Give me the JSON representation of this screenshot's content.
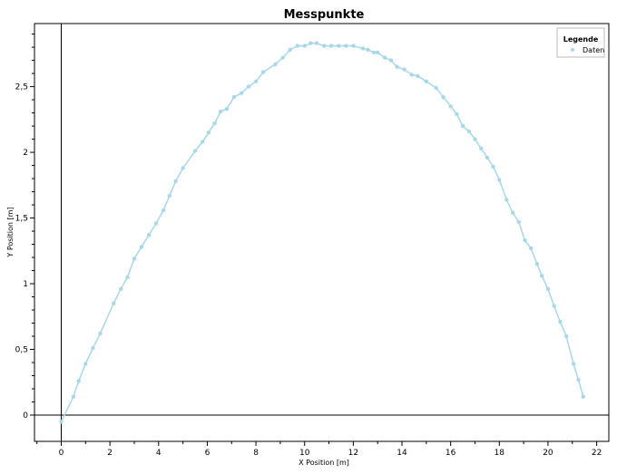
{
  "chart_data": {
    "type": "line",
    "title": "Messpunkte",
    "xlabel": "X Position [m]",
    "ylabel": "Y Position [m]",
    "xlim": [
      -1.1,
      22.5
    ],
    "ylim": [
      -0.2,
      2.98
    ],
    "x_ticks": [
      0,
      2,
      4,
      6,
      8,
      10,
      12,
      14,
      16,
      18,
      20,
      22
    ],
    "x_tick_labels": [
      "0",
      "2",
      "4",
      "6",
      "8",
      "10",
      "12",
      "14",
      "16",
      "18",
      "20",
      "22"
    ],
    "y_ticks": [
      0,
      0.5,
      1,
      1.5,
      2,
      2.5
    ],
    "y_tick_labels": [
      "0",
      "0,5",
      "1",
      "1,5",
      "2",
      "2,5"
    ],
    "grid": false,
    "legend": {
      "title": "Legende",
      "placement": "top-right",
      "entries": [
        "Daten"
      ]
    },
    "colors": {
      "series": "#a8d8e8",
      "axes": "#000000"
    },
    "series": [
      {
        "name": "Daten",
        "points": [
          [
            0.0,
            -0.05
          ],
          [
            0.5,
            0.14
          ],
          [
            0.72,
            0.26
          ],
          [
            1.0,
            0.39
          ],
          [
            1.3,
            0.51
          ],
          [
            1.6,
            0.62
          ],
          [
            2.15,
            0.85
          ],
          [
            2.45,
            0.96
          ],
          [
            2.72,
            1.05
          ],
          [
            3.0,
            1.19
          ],
          [
            3.3,
            1.28
          ],
          [
            3.6,
            1.37
          ],
          [
            3.9,
            1.46
          ],
          [
            4.2,
            1.56
          ],
          [
            4.45,
            1.67
          ],
          [
            4.7,
            1.78
          ],
          [
            5.0,
            1.88
          ],
          [
            5.5,
            2.01
          ],
          [
            5.8,
            2.08
          ],
          [
            6.05,
            2.15
          ],
          [
            6.3,
            2.22
          ],
          [
            6.55,
            2.31
          ],
          [
            6.8,
            2.33
          ],
          [
            7.1,
            2.42
          ],
          [
            7.4,
            2.45
          ],
          [
            7.7,
            2.5
          ],
          [
            8.0,
            2.54
          ],
          [
            8.3,
            2.61
          ],
          [
            8.8,
            2.67
          ],
          [
            9.1,
            2.72
          ],
          [
            9.4,
            2.78
          ],
          [
            9.7,
            2.81
          ],
          [
            10.0,
            2.81
          ],
          [
            10.25,
            2.83
          ],
          [
            10.5,
            2.83
          ],
          [
            10.8,
            2.81
          ],
          [
            11.1,
            2.81
          ],
          [
            11.4,
            2.81
          ],
          [
            11.7,
            2.81
          ],
          [
            12.0,
            2.81
          ],
          [
            12.4,
            2.79
          ],
          [
            12.6,
            2.78
          ],
          [
            12.85,
            2.76
          ],
          [
            13.0,
            2.76
          ],
          [
            13.3,
            2.72
          ],
          [
            13.55,
            2.7
          ],
          [
            13.8,
            2.65
          ],
          [
            14.1,
            2.63
          ],
          [
            14.4,
            2.59
          ],
          [
            14.65,
            2.58
          ],
          [
            15.0,
            2.54
          ],
          [
            15.4,
            2.49
          ],
          [
            15.7,
            2.42
          ],
          [
            16.0,
            2.35
          ],
          [
            16.25,
            2.29
          ],
          [
            16.5,
            2.2
          ],
          [
            16.75,
            2.16
          ],
          [
            17.0,
            2.1
          ],
          [
            17.25,
            2.03
          ],
          [
            17.5,
            1.96
          ],
          [
            17.75,
            1.89
          ],
          [
            18.0,
            1.79
          ],
          [
            18.3,
            1.64
          ],
          [
            18.55,
            1.54
          ],
          [
            18.8,
            1.47
          ],
          [
            19.05,
            1.33
          ],
          [
            19.3,
            1.27
          ],
          [
            19.55,
            1.15
          ],
          [
            19.75,
            1.06
          ],
          [
            20.0,
            0.96
          ],
          [
            20.25,
            0.83
          ],
          [
            20.5,
            0.71
          ],
          [
            20.75,
            0.6
          ],
          [
            21.05,
            0.39
          ],
          [
            21.25,
            0.27
          ],
          [
            21.45,
            0.14
          ]
        ]
      }
    ]
  }
}
